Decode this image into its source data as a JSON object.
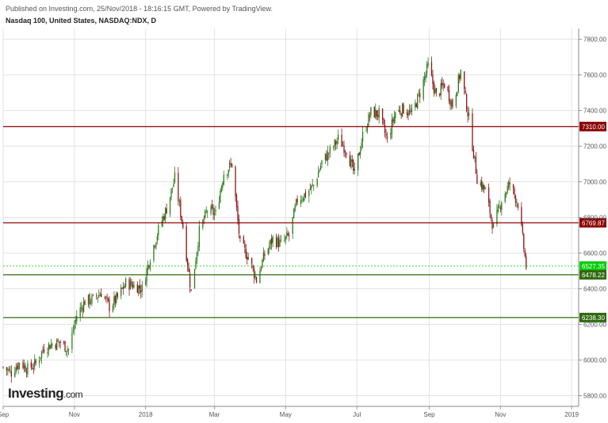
{
  "header": {
    "published": "Published on Investing.com, 25/Nov/2018 - 18:16:15 GMT, Powered by TradingView.",
    "title": "Nasdaq 100, United States, NASDAQ:NDX, D"
  },
  "watermark": {
    "logo_main": "Investing",
    "logo_suffix": ".com"
  },
  "colors": {
    "up": "#2e7d1f",
    "down": "#8b1a1a",
    "resistance": "#8b0000",
    "support": "#2e6b0e",
    "current_price": "#00cc00",
    "grid": "#e3e3e3",
    "axis_text": "#555555"
  },
  "chart_data": {
    "type": "candlestick",
    "y_axis": {
      "ylim": [
        5740,
        7860
      ],
      "ticks": [
        "5800.00",
        "6000.00",
        "6200.00",
        "6400.00",
        "6600.00",
        "6800.00",
        "7000.00",
        "7200.00",
        "7400.00",
        "7600.00",
        "7800.00"
      ]
    },
    "x_axis": {
      "range": [
        "2017-09-01",
        "2019-01-07"
      ],
      "ticks": [
        {
          "label": "Sep",
          "date": "2017-09-01"
        },
        {
          "label": "Nov",
          "date": "2017-11-01"
        },
        {
          "label": "2018",
          "date": "2018-01-01"
        },
        {
          "label": "Mar",
          "date": "2018-03-01"
        },
        {
          "label": "May",
          "date": "2018-05-01"
        },
        {
          "label": "Jul",
          "date": "2018-07-01"
        },
        {
          "label": "Sep",
          "date": "2018-09-01"
        },
        {
          "label": "Nov",
          "date": "2018-11-01"
        },
        {
          "label": "2019",
          "date": "2019-01-01"
        }
      ]
    },
    "horizontal_lines": [
      {
        "value": 7310.0,
        "label": "7310.00",
        "role": "resistance"
      },
      {
        "value": 6769.87,
        "label": "6769.87",
        "role": "resistance"
      },
      {
        "value": 6527.35,
        "label": "6527.35",
        "role": "current_price"
      },
      {
        "value": 6478.22,
        "label": "6478.22",
        "role": "support"
      },
      {
        "value": 6238.3,
        "label": "6238.30",
        "role": "support"
      }
    ],
    "close_series": [
      [
        "2017-09-01",
        5960
      ],
      [
        "2017-09-08",
        5930
      ],
      [
        "2017-09-15",
        5990
      ],
      [
        "2017-09-22",
        5950
      ],
      [
        "2017-09-29",
        5980
      ],
      [
        "2017-10-06",
        6070
      ],
      [
        "2017-10-13",
        6090
      ],
      [
        "2017-10-20",
        6100
      ],
      [
        "2017-10-27",
        6060
      ],
      [
        "2017-11-03",
        6250
      ],
      [
        "2017-11-10",
        6330
      ],
      [
        "2017-11-17",
        6340
      ],
      [
        "2017-11-24",
        6380
      ],
      [
        "2017-12-01",
        6300
      ],
      [
        "2017-12-08",
        6350
      ],
      [
        "2017-12-15",
        6430
      ],
      [
        "2017-12-22",
        6420
      ],
      [
        "2017-12-29",
        6400
      ],
      [
        "2018-01-05",
        6580
      ],
      [
        "2018-01-12",
        6730
      ],
      [
        "2018-01-19",
        6850
      ],
      [
        "2018-01-26",
        7020
      ],
      [
        "2018-02-02",
        6750
      ],
      [
        "2018-02-09",
        6380
      ],
      [
        "2018-02-16",
        6720
      ],
      [
        "2018-02-23",
        6840
      ],
      [
        "2018-03-02",
        6820
      ],
      [
        "2018-03-09",
        7050
      ],
      [
        "2018-03-16",
        7100
      ],
      [
        "2018-03-23",
        6650
      ],
      [
        "2018-03-30",
        6580
      ],
      [
        "2018-04-06",
        6450
      ],
      [
        "2018-04-13",
        6590
      ],
      [
        "2018-04-20",
        6680
      ],
      [
        "2018-04-27",
        6650
      ],
      [
        "2018-05-04",
        6700
      ],
      [
        "2018-05-11",
        6900
      ],
      [
        "2018-05-18",
        6930
      ],
      [
        "2018-05-25",
        6980
      ],
      [
        "2018-06-01",
        7110
      ],
      [
        "2018-06-08",
        7170
      ],
      [
        "2018-06-15",
        7240
      ],
      [
        "2018-06-22",
        7180
      ],
      [
        "2018-06-29",
        7040
      ],
      [
        "2018-07-06",
        7260
      ],
      [
        "2018-07-13",
        7390
      ],
      [
        "2018-07-20",
        7380
      ],
      [
        "2018-07-27",
        7230
      ],
      [
        "2018-08-03",
        7390
      ],
      [
        "2018-08-10",
        7410
      ],
      [
        "2018-08-17",
        7380
      ],
      [
        "2018-08-24",
        7500
      ],
      [
        "2018-08-31",
        7650
      ],
      [
        "2018-09-07",
        7480
      ],
      [
        "2018-09-14",
        7550
      ],
      [
        "2018-09-21",
        7430
      ],
      [
        "2018-09-28",
        7620
      ],
      [
        "2018-10-05",
        7350
      ],
      [
        "2018-10-12",
        7020
      ],
      [
        "2018-10-19",
        6950
      ],
      [
        "2018-10-26",
        6740
      ],
      [
        "2018-11-02",
        6900
      ],
      [
        "2018-11-09",
        6990
      ],
      [
        "2018-11-16",
        6880
      ],
      [
        "2018-11-23",
        6527
      ]
    ]
  }
}
